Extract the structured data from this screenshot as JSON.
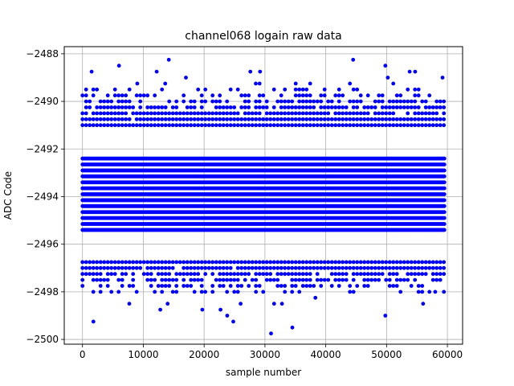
{
  "chart_data": {
    "type": "scatter",
    "title": "channel068 logain raw data",
    "xlabel": "sample number",
    "ylabel": "ADC Code",
    "xlim": [
      -3000,
      62500
    ],
    "ylim": [
      -2500.2,
      -2487.7
    ],
    "xticks": [
      0,
      10000,
      20000,
      30000,
      40000,
      50000,
      60000
    ],
    "xtick_labels": [
      "0",
      "10000",
      "20000",
      "30000",
      "40000",
      "50000",
      "60000"
    ],
    "yticks": [
      -2500,
      -2498,
      -2496,
      -2494,
      -2492,
      -2490,
      -2488
    ],
    "ytick_labels": [
      "−2500",
      "−2498",
      "−2496",
      "−2494",
      "−2492",
      "−2490",
      "−2488"
    ],
    "grid": true,
    "marker_color": "#0000ff",
    "x_range": [
      0,
      59500
    ],
    "level_step": 0.25,
    "dense_band": [
      -2495.6,
      -2492.4
    ],
    "levels": [
      {
        "y": -2489.25,
        "density": 0.1
      },
      {
        "y": -2489.5,
        "density": 0.25
      },
      {
        "y": -2489.75,
        "density": 0.45
      },
      {
        "y": -2490.0,
        "density": 0.6
      },
      {
        "y": -2490.25,
        "density": 0.8
      },
      {
        "y": -2490.5,
        "density": 0.9
      },
      {
        "y": -2490.75,
        "density": 0.97
      },
      {
        "y": -2491.0,
        "density": 1.0
      },
      {
        "y": -2496.75,
        "density": 1.0
      },
      {
        "y": -2497.0,
        "density": 0.95
      },
      {
        "y": -2497.25,
        "density": 0.8
      },
      {
        "y": -2497.5,
        "density": 0.65
      },
      {
        "y": -2497.75,
        "density": 0.45
      },
      {
        "y": -2498.0,
        "density": 0.3
      }
    ],
    "outliers": [
      {
        "x": 1500,
        "y": -2488.75
      },
      {
        "x": 6000,
        "y": -2488.5
      },
      {
        "x": 14200,
        "y": -2488.25
      },
      {
        "x": 9000,
        "y": -2489.25
      },
      {
        "x": 12200,
        "y": -2488.75
      },
      {
        "x": 13600,
        "y": -2489.25
      },
      {
        "x": 17000,
        "y": -2489.0
      },
      {
        "x": 27600,
        "y": -2488.75
      },
      {
        "x": 29200,
        "y": -2488.75
      },
      {
        "x": 28500,
        "y": -2489.25
      },
      {
        "x": 44500,
        "y": -2488.25
      },
      {
        "x": 49800,
        "y": -2488.5
      },
      {
        "x": 50200,
        "y": -2489.0
      },
      {
        "x": 53800,
        "y": -2488.75
      },
      {
        "x": 54700,
        "y": -2488.75
      },
      {
        "x": 59200,
        "y": -2489.0
      },
      {
        "x": 1800,
        "y": -2499.25
      },
      {
        "x": 7700,
        "y": -2498.5
      },
      {
        "x": 12800,
        "y": -2498.75
      },
      {
        "x": 14000,
        "y": -2498.5
      },
      {
        "x": 19700,
        "y": -2498.75
      },
      {
        "x": 22700,
        "y": -2498.75
      },
      {
        "x": 23800,
        "y": -2499.0
      },
      {
        "x": 24800,
        "y": -2499.25
      },
      {
        "x": 26000,
        "y": -2498.5
      },
      {
        "x": 31000,
        "y": -2499.75
      },
      {
        "x": 31500,
        "y": -2498.5
      },
      {
        "x": 32800,
        "y": -2498.5
      },
      {
        "x": 34500,
        "y": -2499.5
      },
      {
        "x": 38300,
        "y": -2498.25
      },
      {
        "x": 49800,
        "y": -2499.0
      },
      {
        "x": 56000,
        "y": -2498.5
      },
      {
        "x": 58000,
        "y": -2498.0
      }
    ]
  }
}
